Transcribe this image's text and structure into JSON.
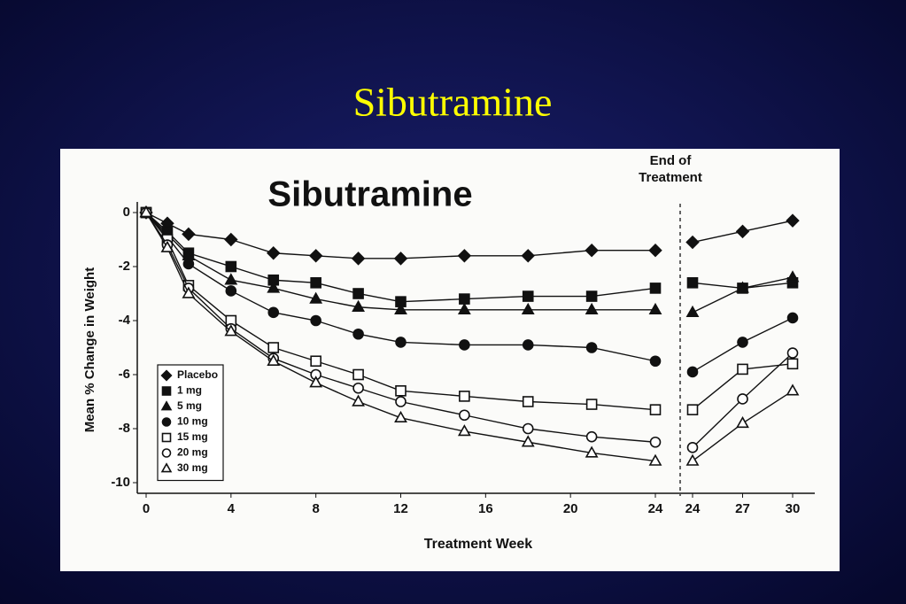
{
  "slide": {
    "title": "Sibutramine"
  },
  "chart_data": {
    "type": "line",
    "title": "Sibutramine",
    "ylabel": "Mean % Change in Weight",
    "xlabel": "Treatment Week",
    "annotation_lines": [
      "End of",
      "Treatment"
    ],
    "x": [
      0,
      1,
      2,
      4,
      6,
      8,
      10,
      12,
      15,
      18,
      21,
      24
    ],
    "xlim": [
      0,
      24
    ],
    "xticks": [
      0,
      4,
      8,
      12,
      16,
      20,
      24
    ],
    "followup": {
      "x": [
        24,
        27,
        30
      ],
      "xlim": [
        24,
        30
      ],
      "xticks": [
        24,
        27,
        30
      ]
    },
    "ylim": [
      -10,
      0
    ],
    "yticks": [
      0,
      -2,
      -4,
      -6,
      -8,
      -10
    ],
    "series": [
      {
        "name": "Placebo",
        "color": "#111111",
        "marker": "diamond",
        "filled": true,
        "values": [
          0,
          -0.4,
          -0.8,
          -1.0,
          -1.5,
          -1.6,
          -1.7,
          -1.7,
          -1.6,
          -1.6,
          -1.4,
          -1.4
        ],
        "followup_values": [
          -1.1,
          -0.7,
          -0.3
        ]
      },
      {
        "name": "1 mg",
        "color": "#111111",
        "marker": "square",
        "filled": true,
        "values": [
          0,
          -0.7,
          -1.5,
          -2.0,
          -2.5,
          -2.6,
          -3.0,
          -3.3,
          -3.2,
          -3.1,
          -3.1,
          -2.8
        ],
        "followup_values": [
          -2.6,
          -2.8,
          -2.6
        ]
      },
      {
        "name": "5 mg",
        "color": "#111111",
        "marker": "triangle",
        "filled": true,
        "values": [
          0,
          -0.8,
          -1.6,
          -2.5,
          -2.8,
          -3.2,
          -3.5,
          -3.6,
          -3.6,
          -3.6,
          -3.6,
          -3.6
        ],
        "followup_values": [
          -3.7,
          -2.8,
          -2.4
        ]
      },
      {
        "name": "10 mg",
        "color": "#111111",
        "marker": "circle",
        "filled": true,
        "values": [
          0,
          -0.9,
          -1.9,
          -2.9,
          -3.7,
          -4.0,
          -4.5,
          -4.8,
          -4.9,
          -4.9,
          -5.0,
          -5.5
        ],
        "followup_values": [
          -5.9,
          -4.8,
          -3.9
        ]
      },
      {
        "name": "15 mg",
        "color": "#111111",
        "marker": "square",
        "filled": false,
        "values": [
          0,
          -1.0,
          -2.7,
          -4.0,
          -5.0,
          -5.5,
          -6.0,
          -6.6,
          -6.8,
          -7.0,
          -7.1,
          -7.3
        ],
        "followup_values": [
          -7.3,
          -5.8,
          -5.6
        ]
      },
      {
        "name": "20 mg",
        "color": "#111111",
        "marker": "circle",
        "filled": false,
        "values": [
          0,
          -1.2,
          -2.8,
          -4.3,
          -5.4,
          -6.0,
          -6.5,
          -7.0,
          -7.5,
          -8.0,
          -8.3,
          -8.5
        ],
        "followup_values": [
          -8.7,
          -6.9,
          -5.2
        ]
      },
      {
        "name": "30 mg",
        "color": "#111111",
        "marker": "triangle",
        "filled": false,
        "values": [
          0,
          -1.3,
          -3.0,
          -4.4,
          -5.5,
          -6.3,
          -7.0,
          -7.6,
          -8.1,
          -8.5,
          -8.9,
          -9.2
        ],
        "followup_values": [
          -9.2,
          -7.8,
          -6.6
        ]
      }
    ]
  }
}
